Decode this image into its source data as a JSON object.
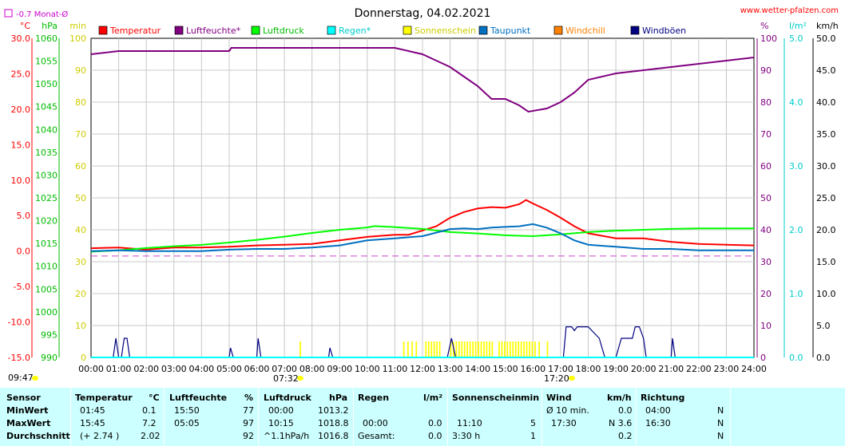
{
  "chart_data": {
    "type": "line",
    "title": "Donnerstag, 04.02.2021",
    "site": "www.wetter-pfalzen.com",
    "month_avg_label": "-0.7 Monat-Ø",
    "month_avg_value": -0.7,
    "x_ticks": [
      "00:00",
      "01:00",
      "02:00",
      "03:00",
      "04:00",
      "05:00",
      "06:00",
      "07:00",
      "08:00",
      "09:00",
      "10:00",
      "11:00",
      "12:00",
      "13:00",
      "14:00",
      "15:00",
      "16:00",
      "17:00",
      "18:00",
      "19:00",
      "20:00",
      "21:00",
      "22:00",
      "23:00",
      "24:00"
    ],
    "sunrise": "07:32",
    "sunset": "17:20",
    "timestamp": "09:47",
    "grid": true,
    "legend_position": "top",
    "axes": {
      "temp": {
        "unit": "°C",
        "range": [
          -15,
          30
        ],
        "ticks": [
          "30.0",
          "25.0",
          "20.0",
          "15.0",
          "10.0",
          "5.0",
          "0.0",
          "-5.0",
          "-10.0",
          "-15.0"
        ],
        "color": "#ff0000"
      },
      "press": {
        "unit": "hPa",
        "range": [
          990,
          1060
        ],
        "ticks": [
          "1060",
          "1055",
          "1050",
          "1045",
          "1040",
          "1035",
          "1030",
          "1025",
          "1020",
          "1015",
          "1010",
          "1005",
          "1000",
          "995",
          "990"
        ],
        "color": "#00bb00"
      },
      "sun": {
        "unit": "min",
        "range": [
          0,
          100
        ],
        "ticks": [
          "100",
          "90",
          "80",
          "70",
          "60",
          "50",
          "40",
          "30",
          "20",
          "10",
          "0"
        ],
        "color": "#cccc00"
      },
      "hum": {
        "unit": "%",
        "range": [
          0,
          100
        ],
        "ticks": [
          "100",
          "90",
          "80",
          "70",
          "60",
          "50",
          "40",
          "30",
          "20",
          "10",
          "0"
        ],
        "color": "#800080"
      },
      "rain": {
        "unit": "l/m²",
        "range": [
          0,
          5
        ],
        "ticks": [
          "5.0",
          "4.0",
          "3.0",
          "2.0",
          "1.0",
          "0.0"
        ],
        "color": "#00cccc"
      },
      "wind": {
        "unit": "km/h",
        "range": [
          0,
          50
        ],
        "ticks": [
          "50.0",
          "45.0",
          "40.0",
          "35.0",
          "30.0",
          "25.0",
          "20.0",
          "15.0",
          "10.0",
          "5.0",
          "0.0"
        ],
        "color": "#000000"
      }
    },
    "legend": [
      {
        "name": "Temperatur",
        "color": "#ff0000"
      },
      {
        "name": "Luftfeuchte*",
        "color": "#800080"
      },
      {
        "name": "Luftdruck",
        "color": "#00ff00"
      },
      {
        "name": "Regen*",
        "color": "#00ffff"
      },
      {
        "name": "Sonnenschein",
        "color": "#ffff00"
      },
      {
        "name": "Taupunkt",
        "color": "#0070c0"
      },
      {
        "name": "Windchill",
        "color": "#ff8000"
      },
      {
        "name": "Windböen",
        "color": "#000080"
      }
    ],
    "series": [
      {
        "name": "Temperatur",
        "axis": "temp",
        "color": "#ff0000",
        "x": [
          0,
          1,
          2,
          3,
          4,
          5,
          6,
          7,
          8,
          9,
          10,
          11,
          11.5,
          12,
          12.5,
          13,
          13.5,
          14,
          14.5,
          15,
          15.5,
          15.75,
          16,
          16.5,
          17,
          17.5,
          18,
          19,
          20,
          21,
          22,
          23,
          24
        ],
        "y": [
          0.4,
          0.5,
          0.2,
          0.5,
          0.5,
          0.6,
          0.8,
          0.9,
          1.0,
          1.5,
          2.0,
          2.3,
          2.3,
          2.9,
          3.5,
          4.7,
          5.5,
          6.0,
          6.2,
          6.1,
          6.6,
          7.2,
          6.7,
          5.8,
          4.7,
          3.5,
          2.5,
          1.8,
          1.8,
          1.3,
          1.0,
          0.9,
          0.8
        ]
      },
      {
        "name": "Luftfeuchte*",
        "axis": "hum",
        "color": "#800080",
        "x": [
          0,
          1,
          2,
          3,
          4,
          5,
          5.08,
          6,
          7,
          8,
          9,
          10,
          11,
          11.5,
          12,
          12.5,
          13,
          13.5,
          14,
          14.5,
          15,
          15.5,
          15.83,
          16.5,
          17,
          17.5,
          18,
          19,
          20,
          21,
          22,
          23,
          24
        ],
        "y": [
          95,
          96,
          96,
          96,
          96,
          96,
          97,
          97,
          97,
          97,
          97,
          97,
          97,
          96,
          95,
          93,
          91,
          88,
          85,
          81,
          81,
          79,
          77,
          78,
          80,
          83,
          87,
          89,
          90,
          91,
          92,
          93,
          94
        ]
      },
      {
        "name": "Luftdruck",
        "axis": "press",
        "color": "#00ff00",
        "x": [
          0,
          1,
          2,
          3,
          4,
          5,
          6,
          7,
          8,
          9,
          10,
          10.25,
          11,
          12,
          13,
          14,
          15,
          16,
          17,
          18,
          19,
          20,
          21,
          22,
          23,
          24
        ],
        "y": [
          1013.2,
          1013.5,
          1014,
          1014.4,
          1014.7,
          1015.2,
          1015.8,
          1016.5,
          1017.3,
          1018,
          1018.5,
          1018.8,
          1018.6,
          1018.2,
          1017.5,
          1017.2,
          1016.8,
          1016.6,
          1017,
          1017.5,
          1017.8,
          1018,
          1018.2,
          1018.3,
          1018.3,
          1018.3
        ]
      },
      {
        "name": "Taupunkt",
        "axis": "temp",
        "color": "#0070c0",
        "x": [
          0,
          1,
          2,
          3,
          4,
          5,
          6,
          7,
          8,
          9,
          10,
          11,
          12,
          13,
          13.5,
          14,
          14.5,
          15,
          15.5,
          16,
          16.5,
          17,
          17.5,
          18,
          19,
          20,
          21,
          22,
          23,
          24
        ],
        "y": [
          0.0,
          0.1,
          0,
          0,
          0,
          0.2,
          0.3,
          0.3,
          0.5,
          0.8,
          1.5,
          1.8,
          2.1,
          3.1,
          3.2,
          3.1,
          3.3,
          3.4,
          3.5,
          3.8,
          3.3,
          2.5,
          1.5,
          0.9,
          0.6,
          0.3,
          0.3,
          0.1,
          0.1,
          0.1
        ]
      },
      {
        "name": "Windböen",
        "axis": "wind",
        "color": "#000080",
        "x": [
          0,
          0.8,
          0.9,
          1.0,
          1.1,
          1.2,
          1.3,
          1.4,
          5,
          5.05,
          5.15,
          6,
          6.05,
          6.15,
          8.6,
          8.65,
          8.75,
          12.9,
          13.05,
          13.2,
          16.9,
          17.1,
          17.2,
          17.4,
          17.5,
          17.6,
          17.8,
          18.0,
          18.4,
          18.6,
          18.7,
          19,
          19.2,
          19.4,
          19.6,
          19.7,
          19.85,
          20,
          20.1,
          21,
          21.05,
          21.15,
          24
        ],
        "y": [
          0,
          0,
          3,
          0,
          0,
          3,
          3,
          0,
          0,
          1.5,
          0,
          0,
          3,
          0,
          0,
          1.5,
          0,
          0,
          3,
          0,
          0,
          0,
          4.8,
          4.8,
          4.2,
          4.8,
          4.8,
          4.8,
          3,
          0,
          0,
          0,
          3,
          3,
          3,
          4.8,
          4.8,
          3,
          0,
          0,
          3,
          0,
          0
        ]
      },
      {
        "name": "Regen*",
        "axis": "rain",
        "color": "#00ffff",
        "x": [
          0,
          24
        ],
        "y": [
          0,
          0
        ]
      },
      {
        "name": "Monat-Ø",
        "axis": "temp",
        "color": "#cc44cc",
        "x": [
          0,
          24
        ],
        "y": [
          -0.7,
          -0.7
        ]
      }
    ],
    "sunshine": {
      "axis": "sun",
      "color": "#ffff00",
      "bars": [
        [
          11.3,
          11.35
        ],
        [
          11.45,
          11.5
        ],
        [
          11.6,
          11.65
        ],
        [
          11.75,
          11.8
        ],
        [
          12.1,
          12.15
        ],
        [
          12.2,
          12.25
        ],
        [
          12.3,
          12.35
        ],
        [
          12.4,
          12.45
        ],
        [
          12.5,
          12.55
        ],
        [
          12.6,
          12.65
        ],
        [
          13.0,
          13.05
        ],
        [
          13.1,
          13.15
        ],
        [
          13.2,
          13.25
        ],
        [
          13.3,
          13.35
        ],
        [
          13.4,
          13.45
        ],
        [
          13.5,
          13.55
        ],
        [
          13.6,
          13.65
        ],
        [
          13.7,
          13.75
        ],
        [
          13.8,
          13.85
        ],
        [
          13.9,
          13.95
        ],
        [
          14.0,
          14.05
        ],
        [
          14.1,
          14.15
        ],
        [
          14.2,
          14.25
        ],
        [
          14.3,
          14.35
        ],
        [
          14.4,
          14.45
        ],
        [
          14.5,
          14.55
        ],
        [
          14.75,
          14.8
        ],
        [
          14.85,
          14.9
        ],
        [
          14.95,
          15.0
        ],
        [
          15.05,
          15.1
        ],
        [
          15.15,
          15.2
        ],
        [
          15.25,
          15.3
        ],
        [
          15.35,
          15.4
        ],
        [
          15.45,
          15.5
        ],
        [
          15.55,
          15.6
        ],
        [
          15.65,
          15.7
        ],
        [
          15.75,
          15.8
        ],
        [
          15.85,
          15.9
        ],
        [
          15.95,
          16.0
        ],
        [
          16.05,
          16.1
        ],
        [
          16.2,
          16.25
        ],
        [
          16.5,
          16.55
        ],
        [
          7.55,
          7.6
        ]
      ],
      "value": 5
    }
  },
  "stats": {
    "row_labels": [
      "Sensor",
      "MinWert",
      "MaxWert",
      "Durchschnitt"
    ],
    "temperatur": {
      "head": "Temperatur",
      "unit": "°C",
      "min_time": "01:45",
      "min": "0.1",
      "max_time": "15:45",
      "max": "7.2",
      "avg_note": "(+ 2.74 )",
      "avg": "2.02"
    },
    "luftfeuchte": {
      "head": "Luftfeuchte",
      "unit": "%",
      "min_time": "15:50",
      "min": "77",
      "max_time": "05:05",
      "max": "97",
      "avg": "92"
    },
    "luftdruck": {
      "head": "Luftdruck",
      "unit": "hPa",
      "min_time": "00:00",
      "min": "1013.2",
      "max_time": "10:15",
      "max": "1018.8",
      "avg_note": "^1.1hPa/h",
      "avg": "1016.8"
    },
    "regen": {
      "head": "Regen",
      "unit": "l/m²",
      "max_time": "00:00",
      "max": "0.0",
      "avg_note": "Gesamt:",
      "avg": "0.0"
    },
    "sonne": {
      "head": "Sonnenschein",
      "unit": "min",
      "max_time": "11:10",
      "max": "5",
      "avg_note": "3:30 h",
      "avg": "1"
    },
    "wind": {
      "head": "Wind",
      "unit": "km/h",
      "min_time": "Ø 10 min.",
      "min": "0.0",
      "max_time": "17:30",
      "max": "N 3.6",
      "avg": "0.2"
    },
    "richtung": {
      "head": "Richtung",
      "min_time": "04:00",
      "min": "N",
      "max_time": "16:30",
      "max": "N",
      "avg": "N"
    }
  }
}
